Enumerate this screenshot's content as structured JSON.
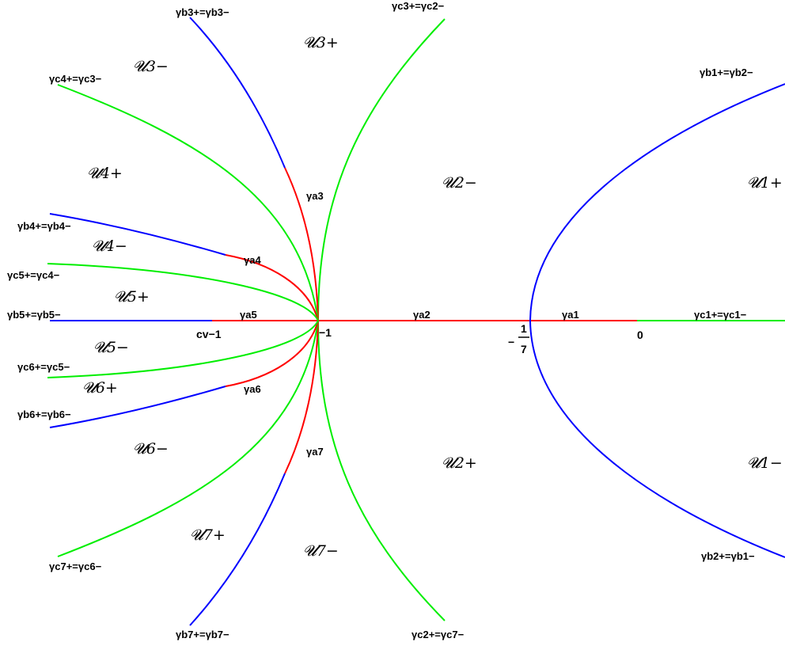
{
  "colors": {
    "a": "#ff0000",
    "b": "#0000ff",
    "c": "#00ee00"
  },
  "curve_labels": {
    "b3": "γb3+=γb3−",
    "c3": "γc3+=γc2−",
    "c4": "γc4+=γc3−",
    "b1": "γb1+=γb2−",
    "b4": "γb4+=γb4−",
    "c5": "γc5+=γc4−",
    "b5": "γb5+=γb5−",
    "c1": "γc1+=γc1−",
    "c6": "γc6+=γc5−",
    "b6": "γb6+=γb6−",
    "c7": "γc7+=γc6−",
    "b2": "γb2+=γb1−",
    "b7": "γb7+=γb7−",
    "c2": "γc2+=γc7−"
  },
  "arc_labels": {
    "a1": "γa1",
    "a2": "γa2",
    "a3": "γa3",
    "a4": "γa4",
    "a5": "γa5",
    "a6": "γa6",
    "a7": "γa7"
  },
  "region_labels": {
    "u3p": "𝓤3+",
    "u3m": "𝓤3−",
    "u4p": "𝓤4+",
    "u4m": "𝓤4−",
    "u5p": "𝓤5+",
    "u5m": "𝓤5−",
    "u6p": "𝓤6+",
    "u6m": "𝓤6−",
    "u7p": "𝓤7+",
    "u7m": "𝓤7−",
    "u2m": "𝓤2−",
    "u2p": "𝓤2+",
    "u1p": "𝓤1+",
    "u1m": "𝓤1−"
  },
  "point_labels": {
    "minus_one": "−1",
    "zero": "0",
    "cv": "cv−1",
    "frac_sign": "−",
    "frac_num": "1",
    "frac_den": "7"
  }
}
